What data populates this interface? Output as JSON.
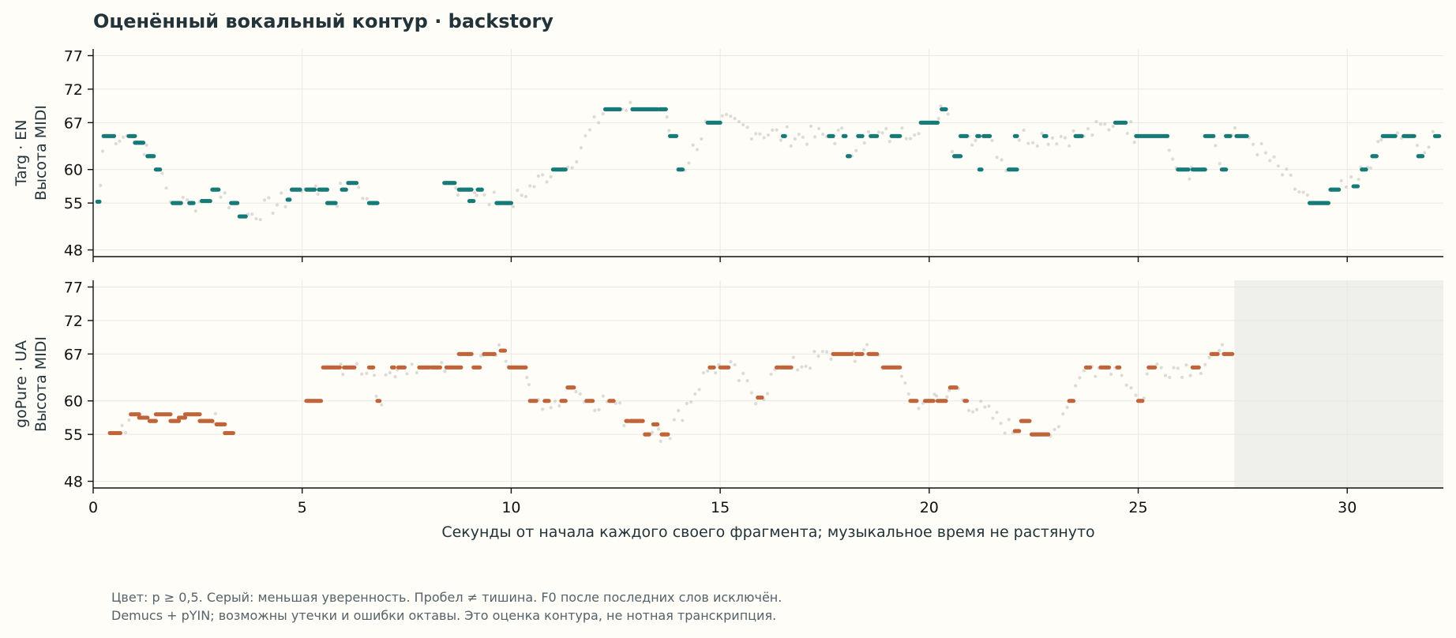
{
  "title": "Оценённый вокальный контур · backstory",
  "notes": [
    "Цвет: p ≥ 0,5. Серый: меньшая уверенность. Пробел ≠ тишина. F0 после последних слов исключён.",
    "Demucs + pYIN; возможны утечки и ошибки октавы. Это оценка контура, не нотная транскрипция."
  ],
  "chart_data": {
    "type": "scatter",
    "xlabel": "Секунды от начала каждого своего фрагмента; музыкальное время не растянуто",
    "xlim": [
      0,
      32.3
    ],
    "x_ticks": [
      0,
      5,
      10,
      15,
      20,
      25,
      30
    ],
    "ylim": [
      47,
      78
    ],
    "y_ticks": [
      48,
      55,
      60,
      67,
      72,
      77
    ],
    "grid": true,
    "colors": {
      "confident_top": "#167a78",
      "confident_bottom": "#c0653a",
      "low_confidence": "#c4c4c4",
      "excluded_region": "#efefeb"
    },
    "panels": [
      {
        "ylabel_line1": "Targ · EN",
        "ylabel_line2": "Высота MIDI",
        "color": "#167a78",
        "confident_segments": [
          [
            0.1,
            0.15,
            55.2
          ],
          [
            0.25,
            0.5,
            65
          ],
          [
            0.85,
            1.0,
            65
          ],
          [
            1.0,
            1.2,
            64
          ],
          [
            1.3,
            1.45,
            62
          ],
          [
            1.5,
            1.6,
            60
          ],
          [
            1.9,
            2.1,
            55
          ],
          [
            2.3,
            2.4,
            55
          ],
          [
            2.6,
            2.8,
            55.3
          ],
          [
            2.85,
            3.0,
            57
          ],
          [
            3.3,
            3.45,
            55
          ],
          [
            3.5,
            3.65,
            53
          ],
          [
            4.65,
            4.7,
            55.5
          ],
          [
            4.75,
            4.95,
            57
          ],
          [
            5.1,
            5.3,
            57
          ],
          [
            5.4,
            5.6,
            57
          ],
          [
            5.6,
            5.8,
            55
          ],
          [
            5.95,
            6.05,
            57
          ],
          [
            6.1,
            6.3,
            58
          ],
          [
            6.6,
            6.8,
            55
          ],
          [
            8.4,
            8.65,
            58
          ],
          [
            8.75,
            9.05,
            57
          ],
          [
            9.0,
            9.1,
            55.3
          ],
          [
            9.2,
            9.3,
            57
          ],
          [
            9.65,
            10.0,
            55
          ],
          [
            11.0,
            11.3,
            60
          ],
          [
            12.25,
            12.6,
            69
          ],
          [
            12.9,
            13.5,
            69
          ],
          [
            13.55,
            13.7,
            69
          ],
          [
            13.8,
            13.95,
            65
          ],
          [
            14.0,
            14.1,
            60
          ],
          [
            14.7,
            15.0,
            67
          ],
          [
            16.5,
            16.55,
            65
          ],
          [
            17.6,
            17.7,
            65
          ],
          [
            17.95,
            18.0,
            65
          ],
          [
            18.05,
            18.1,
            62
          ],
          [
            18.3,
            18.4,
            65
          ],
          [
            18.6,
            18.75,
            65
          ],
          [
            19.1,
            19.3,
            65
          ],
          [
            19.8,
            20.2,
            67
          ],
          [
            20.3,
            20.4,
            69
          ],
          [
            20.6,
            20.75,
            62
          ],
          [
            20.75,
            20.9,
            65
          ],
          [
            21.15,
            21.2,
            65
          ],
          [
            21.2,
            21.25,
            60
          ],
          [
            21.3,
            21.45,
            65
          ],
          [
            21.9,
            22.1,
            60
          ],
          [
            22.05,
            22.1,
            65
          ],
          [
            22.75,
            22.8,
            65
          ],
          [
            23.5,
            23.65,
            65
          ],
          [
            24.45,
            24.7,
            67
          ],
          [
            24.95,
            25.7,
            65
          ],
          [
            25.95,
            26.2,
            60
          ],
          [
            26.3,
            26.6,
            60
          ],
          [
            26.6,
            26.8,
            65
          ],
          [
            27.0,
            27.1,
            60
          ],
          [
            27.1,
            27.2,
            65
          ],
          [
            27.35,
            27.6,
            65
          ],
          [
            29.1,
            29.55,
            55
          ],
          [
            29.6,
            29.8,
            57
          ],
          [
            30.15,
            30.25,
            57.5
          ],
          [
            30.35,
            30.45,
            60
          ],
          [
            30.6,
            30.7,
            62
          ],
          [
            30.85,
            31.15,
            65
          ],
          [
            31.35,
            31.6,
            65
          ],
          [
            31.7,
            31.8,
            62
          ],
          [
            32.1,
            32.2,
            65
          ]
        ]
      },
      {
        "ylabel_line1": "goPure · UA",
        "ylabel_line2": "Высота MIDI",
        "color": "#c0653a",
        "excluded_after": 27.3,
        "confident_segments": [
          [
            0.4,
            0.65,
            55.2
          ],
          [
            0.9,
            1.1,
            58
          ],
          [
            1.1,
            1.3,
            57.5
          ],
          [
            1.35,
            1.5,
            57
          ],
          [
            1.5,
            1.85,
            58
          ],
          [
            1.85,
            2.05,
            57
          ],
          [
            2.05,
            2.2,
            57.5
          ],
          [
            2.2,
            2.55,
            58
          ],
          [
            2.55,
            2.85,
            57
          ],
          [
            2.95,
            3.15,
            56.5
          ],
          [
            3.15,
            3.35,
            55.2
          ],
          [
            5.1,
            5.45,
            60
          ],
          [
            5.5,
            5.9,
            65
          ],
          [
            6.0,
            6.25,
            65
          ],
          [
            6.6,
            6.7,
            65
          ],
          [
            6.8,
            6.85,
            60
          ],
          [
            7.15,
            7.2,
            65
          ],
          [
            7.3,
            7.45,
            65
          ],
          [
            7.8,
            8.05,
            65
          ],
          [
            8.1,
            8.3,
            65
          ],
          [
            8.45,
            8.8,
            65
          ],
          [
            8.75,
            9.05,
            67
          ],
          [
            9.1,
            9.25,
            65
          ],
          [
            9.35,
            9.6,
            67
          ],
          [
            9.75,
            9.85,
            67.5
          ],
          [
            9.95,
            10.35,
            65
          ],
          [
            10.45,
            10.6,
            60
          ],
          [
            10.8,
            10.9,
            60
          ],
          [
            11.2,
            11.3,
            60
          ],
          [
            11.35,
            11.5,
            62
          ],
          [
            11.8,
            11.95,
            60
          ],
          [
            12.35,
            12.45,
            60
          ],
          [
            12.75,
            12.8,
            57
          ],
          [
            12.85,
            13.15,
            57
          ],
          [
            13.2,
            13.3,
            55
          ],
          [
            13.4,
            13.5,
            56.5
          ],
          [
            13.6,
            13.75,
            55
          ],
          [
            14.75,
            14.85,
            65
          ],
          [
            15.0,
            15.2,
            65
          ],
          [
            15.9,
            16.0,
            60.5
          ],
          [
            16.35,
            16.4,
            65
          ],
          [
            16.45,
            16.7,
            65
          ],
          [
            17.7,
            18.15,
            67
          ],
          [
            18.25,
            18.4,
            67
          ],
          [
            18.55,
            18.75,
            67
          ],
          [
            18.9,
            19.3,
            65
          ],
          [
            19.55,
            19.7,
            60
          ],
          [
            19.9,
            20.1,
            60
          ],
          [
            20.2,
            20.4,
            60
          ],
          [
            20.5,
            20.65,
            62
          ],
          [
            20.85,
            20.9,
            60
          ],
          [
            22.05,
            22.15,
            55.5
          ],
          [
            22.2,
            22.4,
            57
          ],
          [
            22.45,
            22.55,
            55
          ],
          [
            22.55,
            22.85,
            55
          ],
          [
            23.35,
            23.45,
            60
          ],
          [
            23.75,
            23.85,
            65
          ],
          [
            24.1,
            24.3,
            65
          ],
          [
            24.5,
            24.55,
            65
          ],
          [
            25.0,
            25.1,
            60
          ],
          [
            25.25,
            25.4,
            65
          ],
          [
            26.3,
            26.45,
            65
          ],
          [
            26.75,
            26.9,
            67
          ],
          [
            27.05,
            27.25,
            67
          ]
        ]
      }
    ]
  }
}
